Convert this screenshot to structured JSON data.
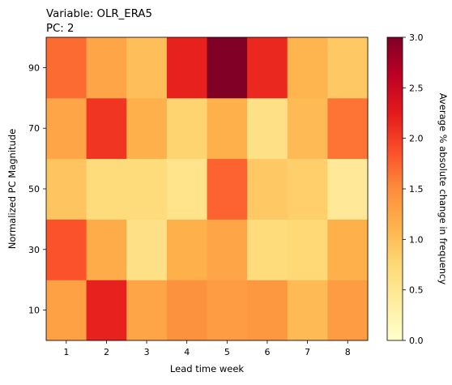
{
  "chart_data": {
    "type": "heatmap",
    "title_lines": [
      "Variable: OLR_ERA5",
      "PC: 2"
    ],
    "xlabel": "Lead time week",
    "ylabel": "Normalized PC Magnitude",
    "x_categories": [
      "1",
      "2",
      "3",
      "4",
      "5",
      "6",
      "7",
      "8"
    ],
    "y_categories": [
      "10",
      "30",
      "50",
      "70",
      "90"
    ],
    "values": [
      [
        1.3,
        2.2,
        1.25,
        1.45,
        1.35,
        1.4,
        1.05,
        1.35
      ],
      [
        1.85,
        1.2,
        0.6,
        1.15,
        1.25,
        0.7,
        0.75,
        1.15
      ],
      [
        0.95,
        0.7,
        0.7,
        0.55,
        1.75,
        0.9,
        0.85,
        0.45
      ],
      [
        1.25,
        2.05,
        1.15,
        0.8,
        1.15,
        0.6,
        1.05,
        1.65
      ],
      [
        1.7,
        1.25,
        1.0,
        2.2,
        3.0,
        2.15,
        1.1,
        0.9
      ]
    ],
    "colorbar": {
      "label": "Average % absolute change in frequency",
      "min": 0.0,
      "max": 3.0,
      "ticks": [
        "0.0",
        "0.5",
        "1.0",
        "1.5",
        "2.0",
        "2.5",
        "3.0"
      ],
      "colormap": "YlOrRd"
    }
  }
}
